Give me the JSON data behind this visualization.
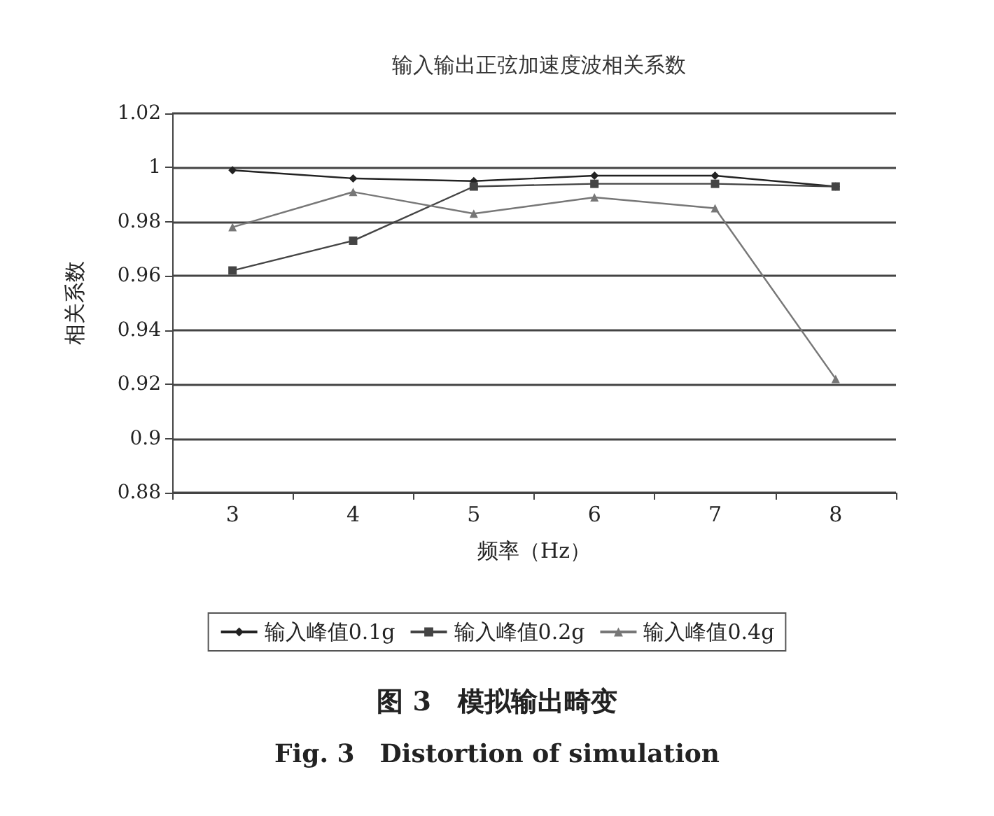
{
  "chart_data": {
    "type": "line",
    "title": "输入输出正弦加速度波相关系数",
    "xlabel": "频率（Hz）",
    "ylabel": "相关系数",
    "categories": [
      "3",
      "4",
      "5",
      "6",
      "7",
      "8"
    ],
    "series": [
      {
        "name": "输入峰值0.1g",
        "color": "#222222",
        "marker": "diamond",
        "values": [
          0.999,
          0.996,
          0.995,
          0.997,
          0.997,
          0.993
        ]
      },
      {
        "name": "输入峰值0.2g",
        "color": "#444444",
        "marker": "square",
        "values": [
          0.962,
          0.973,
          0.993,
          0.994,
          0.994,
          0.993
        ]
      },
      {
        "name": "输入峰值0.4g",
        "color": "#777777",
        "marker": "triangle",
        "values": [
          0.978,
          0.991,
          0.983,
          0.989,
          0.985,
          0.922
        ]
      }
    ],
    "ylim": [
      0.88,
      1.02
    ],
    "yticks": [
      0.88,
      0.9,
      0.92,
      0.94,
      0.96,
      0.98,
      1,
      1.02
    ],
    "grid": "y",
    "legend": "bottom",
    "annotations": [
      "图 3　模拟输出畸变",
      "Fig. 3　Distortion of simulation"
    ]
  }
}
